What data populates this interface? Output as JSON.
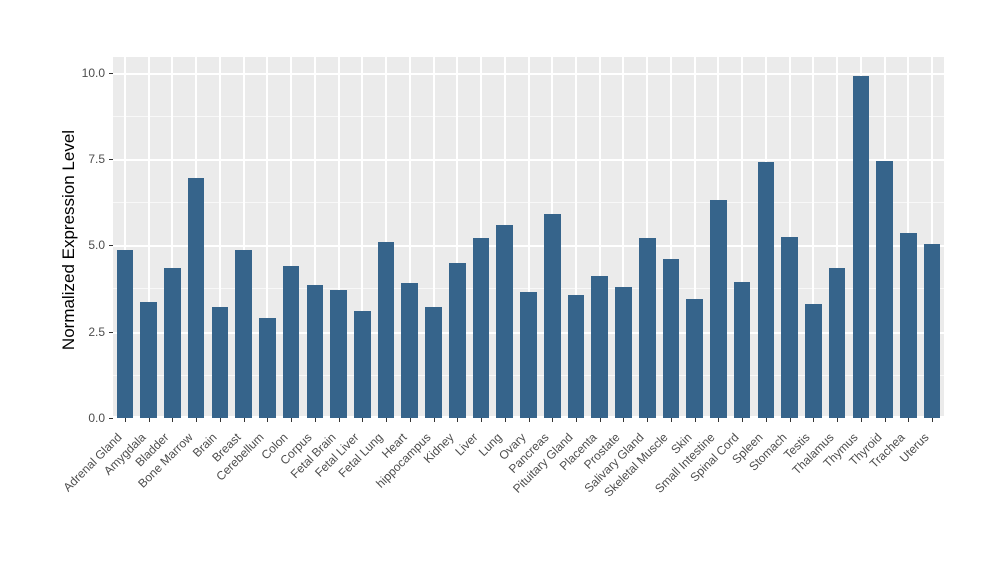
{
  "chart_data": {
    "type": "bar",
    "title": "",
    "xlabel": "",
    "ylabel": "Normalized Expression Level",
    "categories": [
      "Adrenal Gland",
      "Amygdala",
      "Bladder",
      "Bone Marrow",
      "Brain",
      "Breast",
      "Cerebellum",
      "Colon",
      "Corpus",
      "Fetal Brain",
      "Fetal Liver",
      "Fetal Lung",
      "Heart",
      "hippocampus",
      "Kidney",
      "Liver",
      "Lung",
      "Ovary",
      "Pancreas",
      "Pituitary Gland",
      "Placenta",
      "Prostate",
      "Salivary Gland",
      "Skeletal Muscle",
      "Skin",
      "Small Intestine",
      "Spinal Cord",
      "Spleen",
      "Stomach",
      "Testis",
      "Thalamus",
      "Thymus",
      "Thyroid",
      "Trachea",
      "Uterus"
    ],
    "values": [
      4.85,
      3.35,
      4.35,
      6.95,
      3.2,
      4.85,
      2.9,
      4.4,
      3.85,
      3.7,
      3.1,
      5.1,
      3.9,
      3.2,
      4.5,
      5.2,
      5.6,
      3.65,
      5.9,
      3.55,
      4.1,
      3.8,
      5.2,
      4.6,
      3.45,
      6.3,
      3.95,
      7.4,
      5.25,
      3.3,
      4.35,
      9.9,
      7.45,
      5.35,
      5.05
    ],
    "ylim": [
      0,
      10.45
    ],
    "yticks": [
      0.0,
      2.5,
      5.0,
      7.5,
      10.0
    ],
    "ytick_labels": [
      "0.0",
      "2.5",
      "5.0",
      "7.5",
      "10.0"
    ],
    "minor_yticks": [
      1.25,
      3.75,
      6.25,
      8.75
    ],
    "grid": "on",
    "legend_position": "none",
    "bar_color": "#36648B",
    "panel_bg_color": "#EBEBEB",
    "grid_color": "#FFFFFF",
    "tick_label_color": "#4D4D4D",
    "axis_title_color": "#000000"
  }
}
